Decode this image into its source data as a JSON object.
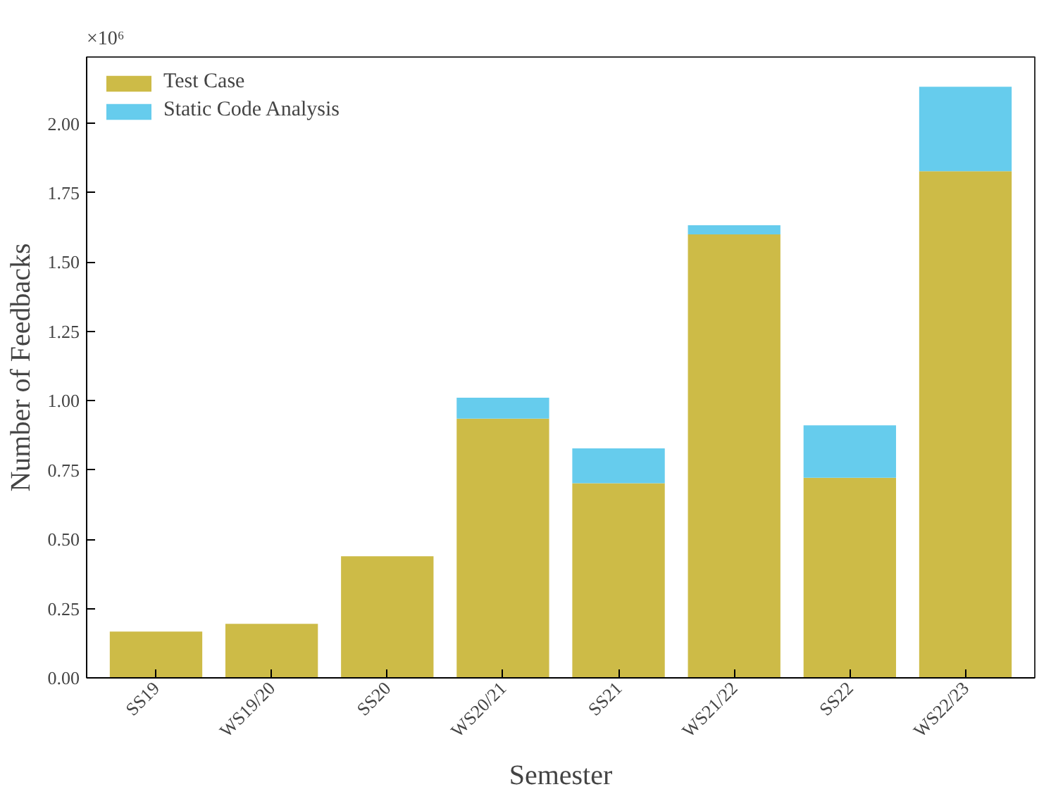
{
  "chart_data": {
    "type": "bar",
    "stacked": true,
    "xlabel": "Semester",
    "ylabel": "Number of Feedbacks",
    "categories": [
      "SS19",
      "WS19/20",
      "SS20",
      "WS20/21",
      "SS21",
      "WS21/22",
      "SS22",
      "WS22/23"
    ],
    "series": [
      {
        "name": "Test Case",
        "color": "#cdbb47",
        "values": [
          0.167,
          0.195,
          0.439,
          0.935,
          0.702,
          1.6,
          0.722,
          1.828
        ]
      },
      {
        "name": "Static Code Analysis",
        "color": "#66cced",
        "values": [
          0,
          0,
          0,
          0.076,
          0.126,
          0.033,
          0.189,
          0.305
        ]
      }
    ],
    "ylim": [
      0,
      2.24
    ],
    "yticks": [
      {
        "value": 0,
        "label": "0.00"
      },
      0.25,
      {
        "value": 0.5,
        "label": "0.50"
      },
      0.75,
      {
        "value": 1,
        "label": "1.00"
      },
      1.25,
      {
        "value": 1.5,
        "label": "1.50"
      },
      1.75,
      {
        "value": 2,
        "label": "2.00"
      }
    ],
    "annotations": [
      "×10⁶"
    ],
    "legend": "top left",
    "grid": false
  }
}
